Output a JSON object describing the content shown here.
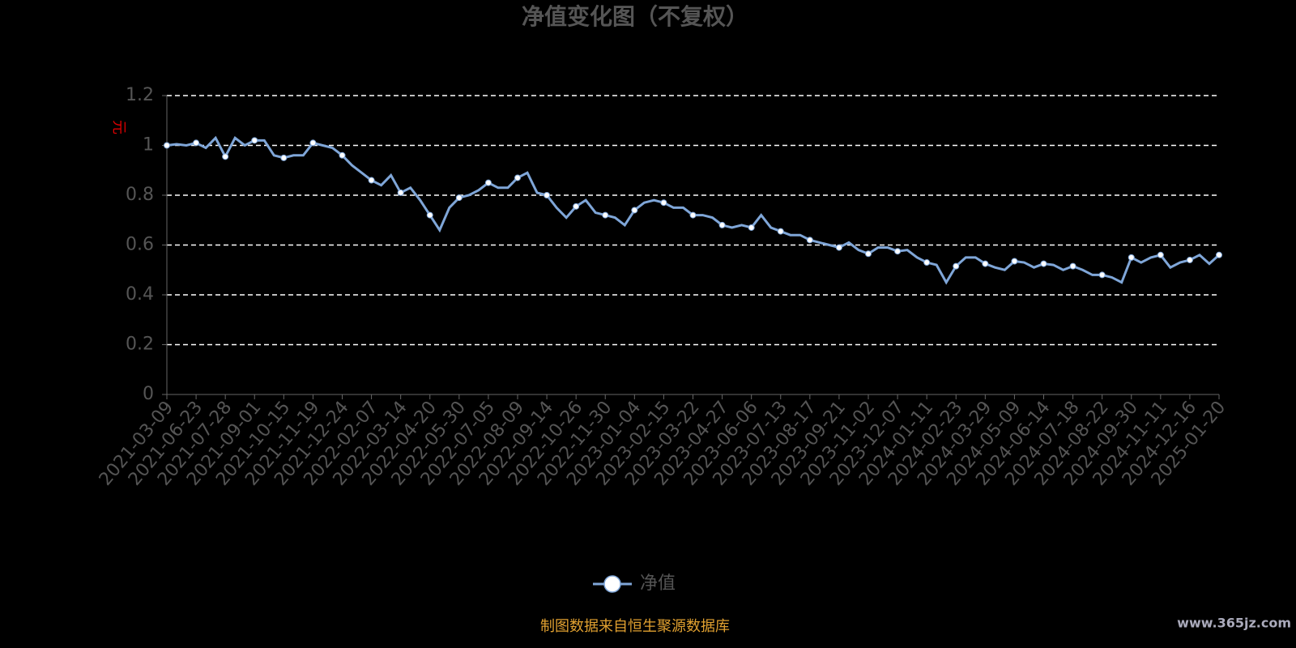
{
  "chart_data": {
    "type": "line",
    "title": "净值变化图（不复权）",
    "y_label": "元",
    "source": "制图数据来自恒生聚源数据库",
    "watermark": "www.365jz.com",
    "categories": [
      "2021-03-09",
      null,
      null,
      "2021-06-23",
      null,
      null,
      "2021-07-28",
      null,
      null,
      "2021-09-01",
      null,
      null,
      "2021-10-15",
      null,
      null,
      "2021-11-19",
      null,
      null,
      "2021-12-24",
      null,
      null,
      "2022-02-07",
      null,
      null,
      "2022-03-14",
      null,
      null,
      "2022-04-20",
      null,
      null,
      "2022-05-30",
      null,
      null,
      "2022-07-05",
      null,
      null,
      "2022-08-09",
      null,
      null,
      "2022-09-14",
      null,
      null,
      "2022-10-26",
      null,
      null,
      "2022-11-30",
      null,
      null,
      "2023-01-04",
      null,
      null,
      "2023-02-15",
      null,
      null,
      "2023-03-22",
      null,
      null,
      "2023-04-27",
      null,
      null,
      "2023-06-06",
      null,
      null,
      "2023-07-13",
      null,
      null,
      "2023-08-17",
      null,
      null,
      "2023-09-21",
      null,
      null,
      "2023-11-02",
      null,
      null,
      "2023-12-07",
      null,
      null,
      "2024-01-11",
      null,
      null,
      "2024-02-23",
      null,
      null,
      "2024-03-29",
      null,
      null,
      "2024-05-09",
      null,
      null,
      "2024-06-14",
      null,
      null,
      "2024-07-18",
      null,
      null,
      "2024-08-22",
      null,
      null,
      "2024-09-30",
      null,
      null,
      "2024-11-11",
      null,
      null,
      "2024-12-16",
      null,
      null,
      "2025-01-20"
    ],
    "series": [
      {
        "name": "净值",
        "color": "#7fa6d8",
        "values": [
          1.0,
          1.005,
          1.0,
          1.01,
          0.99,
          1.03,
          0.955,
          1.03,
          1.0,
          1.02,
          1.02,
          0.96,
          0.95,
          0.96,
          0.96,
          1.01,
          1.0,
          0.99,
          0.96,
          0.92,
          0.89,
          0.86,
          0.84,
          0.88,
          0.81,
          0.83,
          0.78,
          0.72,
          0.66,
          0.75,
          0.79,
          0.8,
          0.82,
          0.85,
          0.83,
          0.83,
          0.87,
          0.89,
          0.81,
          0.8,
          0.75,
          0.71,
          0.755,
          0.78,
          0.73,
          0.72,
          0.71,
          0.68,
          0.74,
          0.77,
          0.78,
          0.77,
          0.75,
          0.75,
          0.72,
          0.72,
          0.71,
          0.68,
          0.67,
          0.68,
          0.67,
          0.72,
          0.67,
          0.655,
          0.64,
          0.64,
          0.62,
          0.61,
          0.6,
          0.59,
          0.61,
          0.58,
          0.565,
          0.59,
          0.59,
          0.575,
          0.58,
          0.55,
          0.53,
          0.52,
          0.45,
          0.515,
          0.55,
          0.55,
          0.525,
          0.51,
          0.5,
          0.535,
          0.53,
          0.51,
          0.525,
          0.52,
          0.5,
          0.515,
          0.5,
          0.48,
          0.48,
          0.47,
          0.45,
          0.55,
          0.53,
          0.55,
          0.56,
          0.51,
          0.53,
          0.54,
          0.56,
          0.525,
          0.56
        ]
      }
    ],
    "ylim": [
      0,
      1.2
    ],
    "yticks": [
      0,
      0.2,
      0.4,
      0.6,
      0.8,
      1,
      1.2
    ],
    "grid": true,
    "legend": "bottom"
  }
}
